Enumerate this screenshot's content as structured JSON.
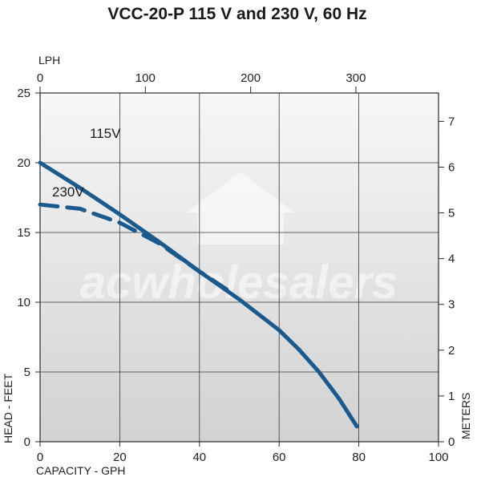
{
  "chart_data": {
    "type": "line",
    "title": "VCC-20-P 115 V and 230 V, 60 Hz",
    "xlabel": "CAPACITY - GPH",
    "ylabel": "HEAD - FEET",
    "x2label": "LPH",
    "y2label": "METERS",
    "xlim": [
      0,
      100
    ],
    "ylim": [
      0,
      25
    ],
    "x2lim": [
      0,
      378.5
    ],
    "y2lim": [
      0,
      7.62
    ],
    "xticks": [
      "0",
      "20",
      "40",
      "60",
      "80",
      "100"
    ],
    "yticks": [
      "0",
      "5",
      "10",
      "15",
      "20",
      "25"
    ],
    "x2ticks": [
      "0",
      "100",
      "200",
      "300"
    ],
    "y2ticks": [
      "0",
      "1",
      "2",
      "3",
      "4",
      "5",
      "6",
      "7"
    ],
    "grid": true,
    "watermark": "acwholesalers",
    "series": [
      {
        "name": "115V",
        "style": "solid",
        "color": "#1b5a8c",
        "x": [
          0,
          10,
          20,
          30,
          40,
          50,
          60,
          65,
          70,
          75,
          79.5
        ],
        "y": [
          20,
          18.2,
          16.3,
          14.3,
          12.2,
          10.2,
          8.0,
          6.6,
          5.0,
          3.1,
          1.1
        ]
      },
      {
        "name": "230V",
        "style": "dashed",
        "color": "#1b5a8c",
        "x": [
          0,
          10,
          20,
          30,
          40,
          48
        ],
        "y": [
          17.0,
          16.7,
          15.7,
          14.2,
          12.2,
          10.7
        ]
      }
    ]
  }
}
